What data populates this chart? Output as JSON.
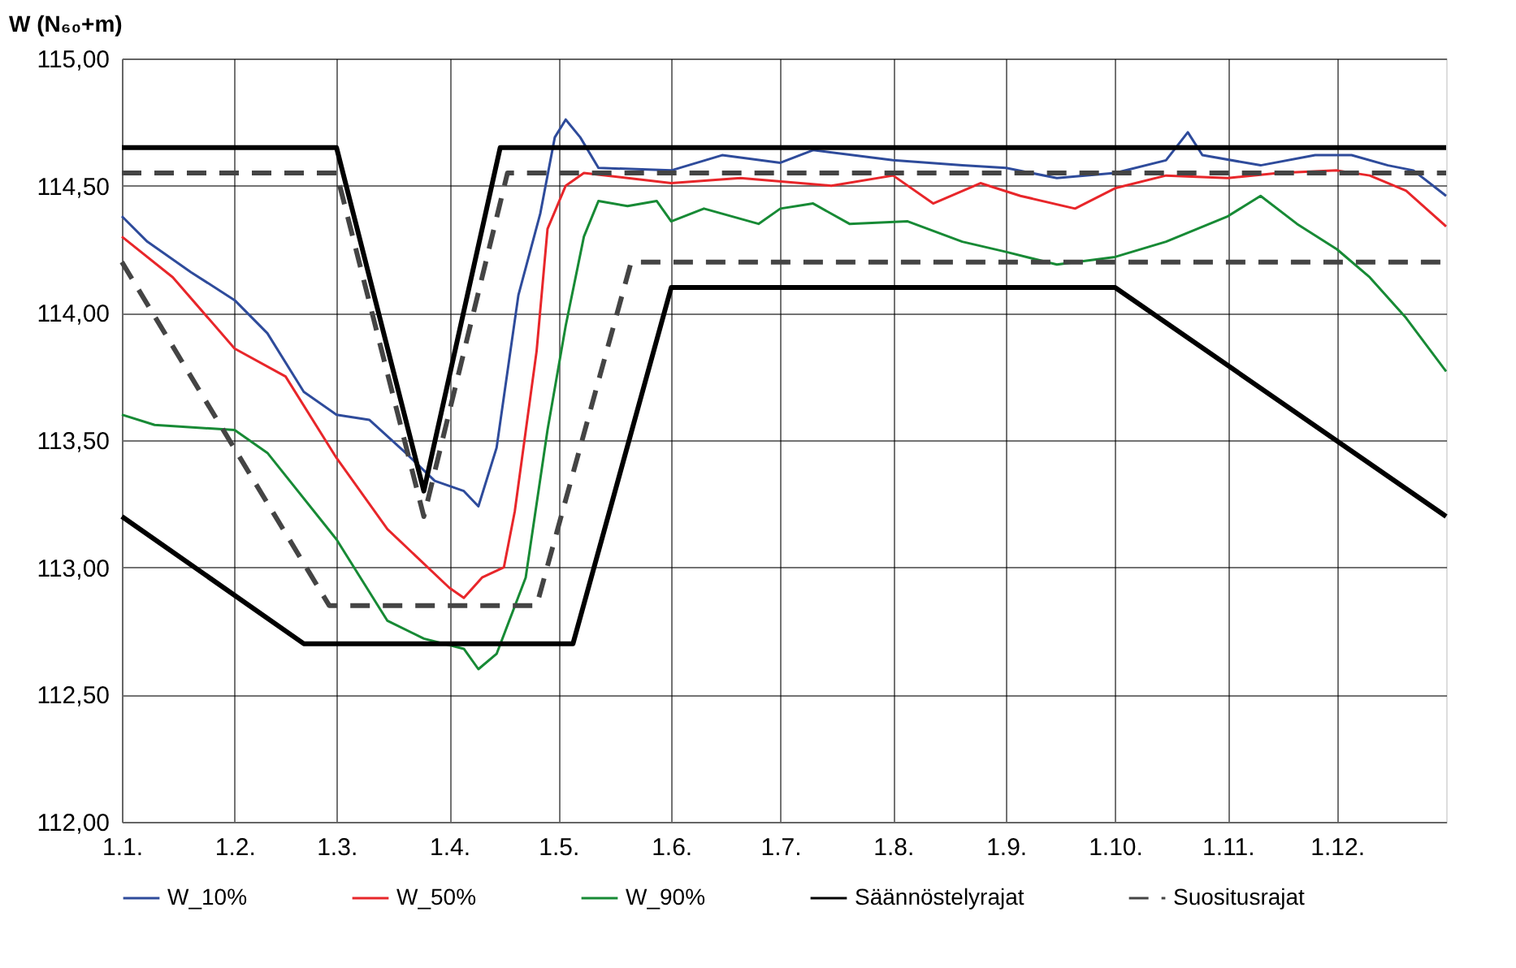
{
  "chart_data": {
    "type": "line",
    "ylabel": "W (N₆₀+m)",
    "xlim": [
      "--01-01",
      "--12-31"
    ],
    "xticks": [
      {
        "value": "--01-01",
        "label": "1.1."
      },
      {
        "value": "--02-01",
        "label": "1.2."
      },
      {
        "value": "--03-01",
        "label": "1.3."
      },
      {
        "value": "--04-01",
        "label": "1.4."
      },
      {
        "value": "--05-01",
        "label": "1.5."
      },
      {
        "value": "--06-01",
        "label": "1.6."
      },
      {
        "value": "--07-01",
        "label": "1.7."
      },
      {
        "value": "--08-01",
        "label": "1.8."
      },
      {
        "value": "--09-01",
        "label": "1.9."
      },
      {
        "value": "--10-01",
        "label": "1.10."
      },
      {
        "value": "--11-01",
        "label": "1.11."
      },
      {
        "value": "--12-01",
        "label": "1.12."
      }
    ],
    "ylim": [
      112,
      115
    ],
    "yticks": [
      {
        "value": 112,
        "label": "112,00"
      },
      {
        "value": 112.5,
        "label": "112,50"
      },
      {
        "value": 113,
        "label": "113,00"
      },
      {
        "value": 113.5,
        "label": "113,50"
      },
      {
        "value": 114,
        "label": "114,00"
      },
      {
        "value": 114.5,
        "label": "114,50"
      },
      {
        "value": 115,
        "label": "115,00"
      }
    ],
    "grid": true,
    "legend": "bottom",
    "series": [
      {
        "name": "W_10%",
        "color": "#2e4b9b",
        "x": [
          "--01-01",
          "--01-08",
          "--01-20",
          "--02-01",
          "--02-10",
          "--02-20",
          "--03-01",
          "--03-10",
          "--03-20",
          "--03-28",
          "--04-05",
          "--04-09",
          "--04-14",
          "--04-20",
          "--04-26",
          "--04-30",
          "--05-03",
          "--05-07",
          "--05-12",
          "--06-01",
          "--06-15",
          "--07-01",
          "--07-10",
          "--08-01",
          "--08-20",
          "--09-01",
          "--09-15",
          "--10-01",
          "--10-15",
          "--10-21",
          "--10-25",
          "--11-10",
          "--11-25",
          "--12-05",
          "--12-15",
          "--12-22",
          "--12-31"
        ],
        "values": [
          114.38,
          114.28,
          114.16,
          114.05,
          113.92,
          113.69,
          113.6,
          113.58,
          113.45,
          113.34,
          113.3,
          113.24,
          113.47,
          114.07,
          114.39,
          114.69,
          114.76,
          114.69,
          114.57,
          114.56,
          114.62,
          114.59,
          114.64,
          114.6,
          114.58,
          114.57,
          114.53,
          114.55,
          114.6,
          114.71,
          114.62,
          114.58,
          114.62,
          114.62,
          114.58,
          114.56,
          114.46
        ]
      },
      {
        "name": "W_50%",
        "color": "#e8262a",
        "x": [
          "--01-01",
          "--01-15",
          "--02-01",
          "--02-15",
          "--03-01",
          "--03-15",
          "--04-01",
          "--04-05",
          "--04-10",
          "--04-16",
          "--04-19",
          "--04-25",
          "--04-28",
          "--05-03",
          "--05-08",
          "--06-01",
          "--06-20",
          "--07-15",
          "--08-01",
          "--08-12",
          "--08-25",
          "--09-05",
          "--09-20",
          "--10-01",
          "--10-15",
          "--11-01",
          "--11-15",
          "--12-01",
          "--12-10",
          "--12-20",
          "--12-31"
        ],
        "values": [
          114.3,
          114.14,
          113.86,
          113.75,
          113.43,
          113.15,
          112.92,
          112.88,
          112.96,
          113.0,
          113.22,
          113.85,
          114.33,
          114.5,
          114.55,
          114.51,
          114.53,
          114.5,
          114.54,
          114.43,
          114.51,
          114.46,
          114.41,
          114.49,
          114.54,
          114.53,
          114.55,
          114.56,
          114.54,
          114.48,
          114.34
        ]
      },
      {
        "name": "W_90%",
        "color": "#178a35",
        "x": [
          "--01-01",
          "--01-10",
          "--02-01",
          "--02-10",
          "--03-01",
          "--03-15",
          "--03-25",
          "--04-05",
          "--04-09",
          "--04-14",
          "--04-18",
          "--04-22",
          "--04-28",
          "--05-03",
          "--05-08",
          "--05-12",
          "--05-20",
          "--05-28",
          "--06-01",
          "--06-10",
          "--06-25",
          "--07-01",
          "--07-10",
          "--07-20",
          "--08-05",
          "--08-20",
          "--09-01",
          "--09-15",
          "--10-01",
          "--10-15",
          "--11-01",
          "--11-10",
          "--11-20",
          "--12-01",
          "--12-10",
          "--12-20",
          "--12-31"
        ],
        "values": [
          113.6,
          113.56,
          113.54,
          113.45,
          113.11,
          112.79,
          112.72,
          112.68,
          112.6,
          112.66,
          112.81,
          112.96,
          113.54,
          113.95,
          114.3,
          114.44,
          114.42,
          114.44,
          114.36,
          114.41,
          114.35,
          114.41,
          114.43,
          114.35,
          114.36,
          114.28,
          114.24,
          114.19,
          114.22,
          114.28,
          114.38,
          114.46,
          114.35,
          114.25,
          114.14,
          113.98,
          113.77
        ]
      },
      {
        "name": "Säännöstelyrajat",
        "color": "#000000",
        "line_style": "solid",
        "x": [
          "--01-01",
          "--03-01",
          "--03-25",
          "--04-15",
          "--12-31"
        ],
        "values": [
          114.65,
          114.65,
          113.3,
          114.65,
          114.65
        ]
      },
      {
        "color": "#000000",
        "line_style": "solid",
        "x": [
          "--01-01",
          "--02-20",
          "--05-05",
          "--06-01",
          "--10-01",
          "--12-31"
        ],
        "values": [
          113.2,
          112.7,
          112.7,
          114.1,
          114.1,
          113.2
        ]
      },
      {
        "name": "Suositusrajat",
        "color": "#444444",
        "line_style": "dashed",
        "x": [
          "--01-01",
          "--03-01",
          "--03-25",
          "--04-17",
          "--12-31"
        ],
        "values": [
          114.55,
          114.55,
          113.2,
          114.55,
          114.55
        ]
      },
      {
        "color": "#444444",
        "line_style": "dashed",
        "x": [
          "--01-01",
          "--02-27",
          "--04-25",
          "--05-21",
          "--12-31"
        ],
        "values": [
          114.2,
          112.85,
          112.85,
          114.2,
          114.2
        ]
      }
    ]
  }
}
